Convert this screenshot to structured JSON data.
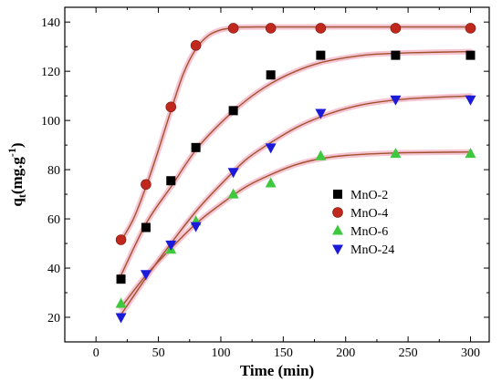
{
  "chart_data": {
    "type": "scatter",
    "xlabel": "Time (min)",
    "ylabel_main": "q",
    "ylabel_sub": "t",
    "ylabel_rest": "(mg.g",
    "ylabel_sup": "-1",
    "ylabel_close": ")",
    "xlim": [
      -25,
      315
    ],
    "ylim": [
      10,
      146
    ],
    "xticks": [
      0,
      50,
      100,
      150,
      200,
      250,
      300
    ],
    "yticks": [
      20,
      40,
      60,
      80,
      100,
      120,
      140
    ],
    "legend_position": "right-middle",
    "fit_curve_color": "#a0522d",
    "fit_halo_color": "#f4b6c8",
    "series": [
      {
        "name": "MnO-2",
        "marker": "square",
        "color": "#000000",
        "x": [
          20,
          40,
          60,
          80,
          110,
          140,
          180,
          240,
          300
        ],
        "y": [
          35.5,
          56.5,
          75.5,
          89,
          104,
          118.5,
          126.5,
          126.5,
          126.5
        ],
        "fit": [
          [
            20,
            37
          ],
          [
            40,
            58
          ],
          [
            60,
            73
          ],
          [
            80,
            88
          ],
          [
            100,
            99
          ],
          [
            120,
            108
          ],
          [
            140,
            115
          ],
          [
            160,
            120
          ],
          [
            180,
            123.5
          ],
          [
            200,
            125.5
          ],
          [
            220,
            126.8
          ],
          [
            250,
            127.5
          ],
          [
            300,
            128
          ]
        ]
      },
      {
        "name": "MnO-4",
        "marker": "circle",
        "color": "#c0281e",
        "x": [
          20,
          40,
          60,
          80,
          110,
          140,
          180,
          240,
          300
        ],
        "y": [
          51.5,
          74,
          105.5,
          130.5,
          137.5,
          137.5,
          137.5,
          137.5,
          137.5
        ],
        "fit": [
          [
            20,
            51
          ],
          [
            30,
            60
          ],
          [
            40,
            73
          ],
          [
            50,
            88
          ],
          [
            60,
            104
          ],
          [
            70,
            119
          ],
          [
            80,
            129
          ],
          [
            90,
            134.5
          ],
          [
            100,
            136.8
          ],
          [
            110,
            137.6
          ],
          [
            130,
            138
          ],
          [
            300,
            138
          ]
        ]
      },
      {
        "name": "MnO-6",
        "marker": "triangle-up",
        "color": "#3ec83e",
        "x": [
          20,
          60,
          80,
          110,
          140,
          180,
          240,
          300
        ],
        "y": [
          25.5,
          47.5,
          59,
          70,
          74.5,
          85.5,
          86.5,
          86.5
        ],
        "fit": [
          [
            20,
            24
          ],
          [
            40,
            37
          ],
          [
            60,
            48
          ],
          [
            80,
            58
          ],
          [
            100,
            66
          ],
          [
            120,
            73
          ],
          [
            140,
            78
          ],
          [
            160,
            82
          ],
          [
            180,
            84.5
          ],
          [
            200,
            85.8
          ],
          [
            240,
            86.8
          ],
          [
            300,
            87.2
          ]
        ]
      },
      {
        "name": "MnO-24",
        "marker": "triangle-down",
        "color": "#1a1ad8",
        "x": [
          20,
          40,
          60,
          80,
          110,
          140,
          180,
          240,
          300
        ],
        "y": [
          20,
          37.5,
          49.5,
          57,
          79,
          89,
          103,
          108.5,
          108.5
        ],
        "fit": [
          [
            20,
            21
          ],
          [
            40,
            36
          ],
          [
            60,
            50
          ],
          [
            80,
            63
          ],
          [
            100,
            74
          ],
          [
            120,
            84
          ],
          [
            140,
            91
          ],
          [
            160,
            97
          ],
          [
            180,
            101.5
          ],
          [
            200,
            104.8
          ],
          [
            220,
            107
          ],
          [
            250,
            108.8
          ],
          [
            300,
            110
          ]
        ]
      }
    ]
  }
}
